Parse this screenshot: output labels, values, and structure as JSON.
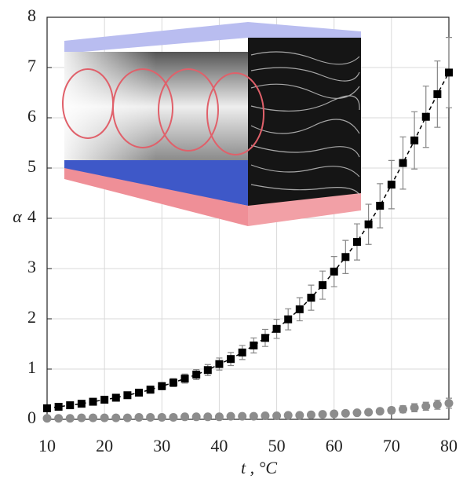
{
  "chart_data": {
    "type": "scatter",
    "x_label": "t , °C",
    "y_label": "α",
    "xlim": [
      10,
      80
    ],
    "ylim": [
      0,
      8
    ],
    "xticks": [
      10,
      20,
      30,
      40,
      50,
      60,
      70,
      80
    ],
    "yticks": [
      0,
      1,
      2,
      3,
      4,
      5,
      6,
      7,
      8
    ],
    "grid": true,
    "x": [
      10,
      12,
      14,
      16,
      18,
      20,
      22,
      24,
      26,
      28,
      30,
      32,
      34,
      36,
      38,
      40,
      42,
      44,
      46,
      48,
      50,
      52,
      54,
      56,
      58,
      60,
      62,
      64,
      66,
      68,
      70,
      72,
      74,
      76,
      78,
      80
    ],
    "series": [
      {
        "color": "#000000",
        "marker": "square",
        "dashed_line": true,
        "values": [
          0.22,
          0.25,
          0.28,
          0.31,
          0.35,
          0.39,
          0.43,
          0.48,
          0.53,
          0.59,
          0.66,
          0.73,
          0.81,
          0.89,
          0.98,
          1.1,
          1.2,
          1.33,
          1.47,
          1.62,
          1.8,
          1.99,
          2.19,
          2.42,
          2.67,
          2.94,
          3.23,
          3.53,
          3.88,
          4.25,
          4.67,
          5.1,
          5.55,
          6.02,
          6.47,
          6.9
        ],
        "error": [
          0.04,
          0.04,
          0.04,
          0.04,
          0.05,
          0.05,
          0.05,
          0.06,
          0.06,
          0.07,
          0.07,
          0.08,
          0.09,
          0.1,
          0.11,
          0.12,
          0.13,
          0.14,
          0.15,
          0.17,
          0.19,
          0.21,
          0.23,
          0.25,
          0.28,
          0.3,
          0.33,
          0.36,
          0.4,
          0.44,
          0.48,
          0.52,
          0.57,
          0.61,
          0.66,
          0.7
        ]
      },
      {
        "color": "#8c8c8c",
        "marker": "circle",
        "dashed_line": false,
        "values": [
          0.02,
          0.02,
          0.02,
          0.03,
          0.03,
          0.03,
          0.03,
          0.03,
          0.04,
          0.04,
          0.04,
          0.04,
          0.05,
          0.05,
          0.05,
          0.05,
          0.06,
          0.06,
          0.06,
          0.07,
          0.07,
          0.08,
          0.08,
          0.09,
          0.1,
          0.11,
          0.12,
          0.13,
          0.14,
          0.16,
          0.18,
          0.2,
          0.23,
          0.26,
          0.29,
          0.32
        ],
        "error": [
          0.01,
          0.01,
          0.01,
          0.01,
          0.01,
          0.01,
          0.01,
          0.01,
          0.02,
          0.02,
          0.02,
          0.02,
          0.02,
          0.02,
          0.02,
          0.02,
          0.02,
          0.02,
          0.02,
          0.02,
          0.03,
          0.03,
          0.03,
          0.03,
          0.03,
          0.03,
          0.04,
          0.04,
          0.05,
          0.05,
          0.06,
          0.07,
          0.08,
          0.08,
          0.09,
          0.1
        ]
      }
    ]
  }
}
